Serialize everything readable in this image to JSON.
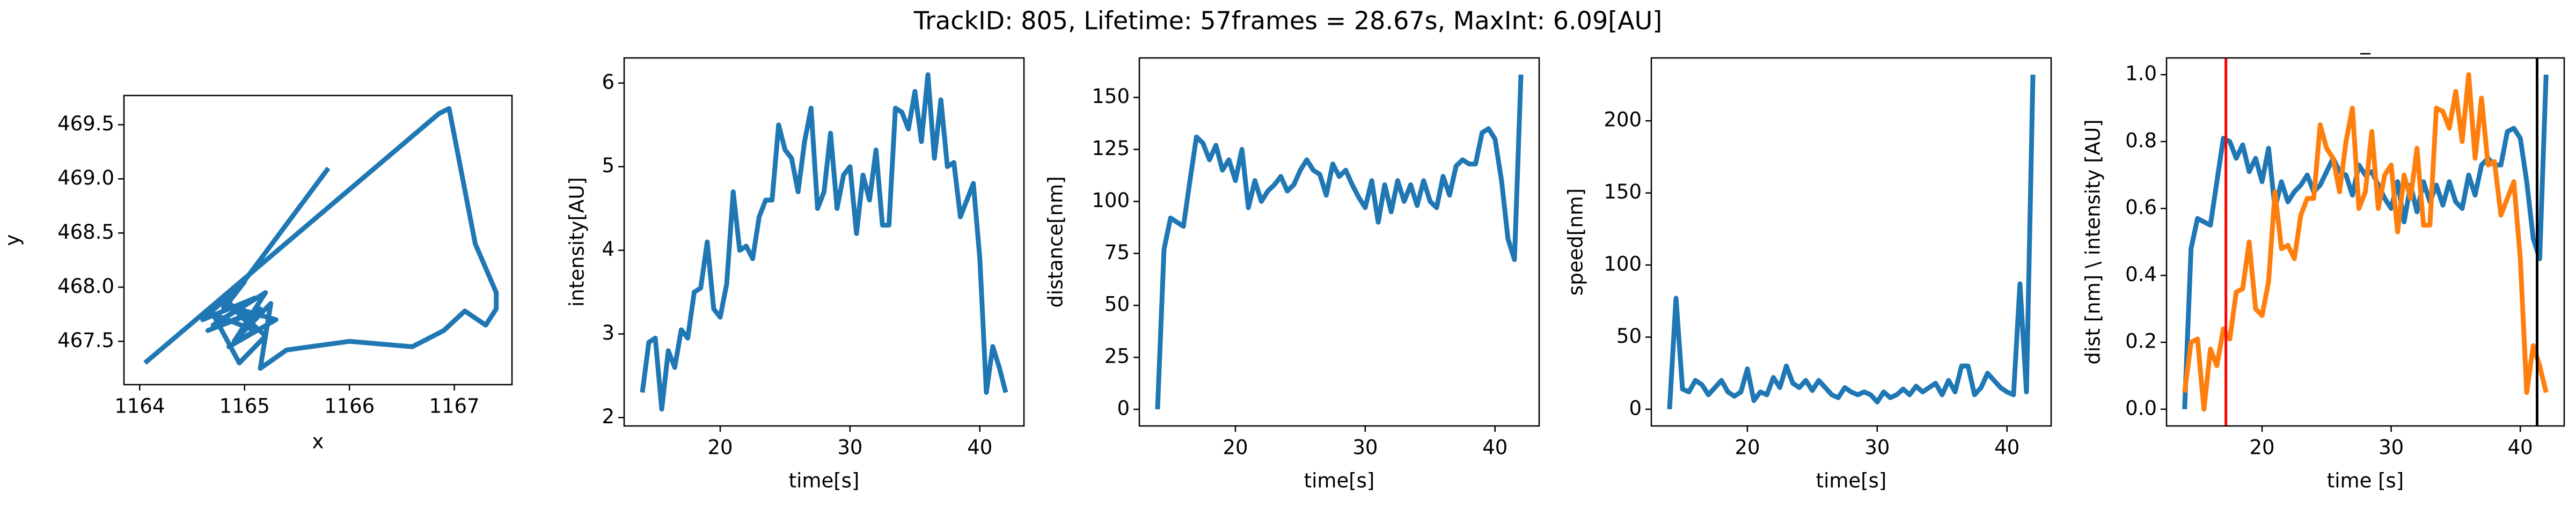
{
  "title": "TrackID: 805, Lifetime: 57frames = 28.67s, MaxInt: 6.09[AU]",
  "chart_data": [
    {
      "type": "line",
      "xlabel": "x",
      "ylabel": "y",
      "x": [
        1165.8,
        1164.8,
        1165.0,
        1164.6,
        1165.1,
        1164.7,
        1165.2,
        1164.9,
        1165.15,
        1164.65,
        1165.05,
        1164.75,
        1165.3,
        1164.85,
        1165.1,
        1164.7,
        1164.95,
        1165.2,
        1164.8,
        1165.05,
        1164.9,
        1165.25,
        1165.15,
        1165.4,
        1166.0,
        1166.6,
        1166.9,
        1167.1,
        1167.3,
        1167.4,
        1167.4,
        1167.2,
        1166.95,
        1166.85,
        1164.05
      ],
      "series": [
        {
          "color": "#1f77b4",
          "values": [
            469.1,
            467.8,
            468.05,
            467.7,
            467.9,
            467.65,
            467.95,
            467.5,
            467.8,
            467.6,
            467.75,
            467.85,
            467.7,
            467.45,
            467.6,
            467.75,
            467.3,
            467.55,
            467.9,
            467.65,
            467.5,
            467.85,
            467.25,
            467.42,
            467.5,
            467.45,
            467.6,
            467.78,
            467.65,
            467.8,
            467.95,
            468.4,
            469.65,
            469.6,
            467.3
          ]
        }
      ],
      "xlim": [
        1163.85,
        1167.55
      ],
      "xticks": [
        1164,
        1165,
        1166,
        1167
      ],
      "ylim": [
        467.1,
        469.77
      ],
      "yticks": [
        467.5,
        {
          "value": 468,
          "label": "468.0"
        },
        468.5,
        {
          "value": 469,
          "label": "469.0"
        },
        469.5
      ]
    },
    {
      "type": "line",
      "xlabel": "time[s]",
      "ylabel": "intensity[AU]",
      "x": [
        14.0,
        14.5,
        15.0,
        15.5,
        16.0,
        16.5,
        17.0,
        17.5,
        18.0,
        18.5,
        19.0,
        19.5,
        20.0,
        20.5,
        21.0,
        21.5,
        22.0,
        22.5,
        23.0,
        23.5,
        24.0,
        24.5,
        25.0,
        25.5,
        26.0,
        26.5,
        27.0,
        27.5,
        28.0,
        28.5,
        29.0,
        29.5,
        30.0,
        30.5,
        31.0,
        31.5,
        32.0,
        32.5,
        33.0,
        33.5,
        34.0,
        34.5,
        35.0,
        35.5,
        36.0,
        36.5,
        37.0,
        37.5,
        38.0,
        38.5,
        39.0,
        39.5,
        40.0,
        40.5,
        41.0,
        41.5,
        42.0
      ],
      "series": [
        {
          "color": "#1f77b4",
          "values": [
            2.3,
            2.9,
            2.95,
            2.1,
            2.8,
            2.6,
            3.05,
            2.95,
            3.5,
            3.55,
            4.1,
            3.3,
            3.2,
            3.6,
            4.7,
            4.0,
            4.05,
            3.9,
            4.4,
            4.6,
            4.6,
            5.5,
            5.2,
            5.1,
            4.7,
            5.3,
            5.7,
            4.5,
            4.7,
            5.4,
            4.5,
            4.9,
            5.0,
            4.2,
            4.9,
            4.6,
            5.2,
            4.3,
            4.3,
            5.7,
            5.65,
            5.45,
            5.9,
            5.3,
            6.1,
            5.1,
            5.8,
            5.0,
            5.05,
            4.4,
            4.6,
            4.8,
            3.9,
            2.3,
            2.85,
            2.6,
            2.3
          ]
        }
      ],
      "xlim": [
        12.6,
        43.4
      ],
      "xticks": [
        20,
        30,
        40
      ],
      "ylim": [
        1.9,
        6.3
      ],
      "yticks": [
        2,
        3,
        4,
        5,
        6
      ]
    },
    {
      "type": "line",
      "xlabel": "time[s]",
      "ylabel": "distance[nm]",
      "x": [
        14.0,
        14.5,
        15.0,
        15.5,
        16.0,
        16.5,
        17.0,
        17.5,
        18.0,
        18.5,
        19.0,
        19.5,
        20.0,
        20.5,
        21.0,
        21.5,
        22.0,
        22.5,
        23.0,
        23.5,
        24.0,
        24.5,
        25.0,
        25.5,
        26.0,
        26.5,
        27.0,
        27.5,
        28.0,
        28.5,
        29.0,
        29.5,
        30.0,
        30.5,
        31.0,
        31.5,
        32.0,
        32.5,
        33.0,
        33.5,
        34.0,
        34.5,
        35.0,
        35.5,
        36.0,
        36.5,
        37.0,
        37.5,
        38.0,
        38.5,
        39.0,
        39.5,
        40.0,
        40.5,
        41.0,
        41.5,
        42.0
      ],
      "series": [
        {
          "color": "#1f77b4",
          "values": [
            0,
            77,
            92,
            90,
            88,
            110,
            131,
            128,
            120,
            127,
            115,
            120,
            110,
            125,
            97,
            110,
            100,
            105,
            108,
            112,
            105,
            108,
            115,
            120,
            115,
            113,
            103,
            118,
            112,
            115,
            108,
            102,
            97,
            110,
            90,
            108,
            95,
            110,
            100,
            108,
            98,
            110,
            100,
            97,
            112,
            103,
            117,
            120,
            118,
            118,
            133,
            135,
            130,
            110,
            82,
            72,
            161
          ]
        }
      ],
      "xlim": [
        12.6,
        43.4
      ],
      "xticks": [
        20,
        30,
        40
      ],
      "ylim": [
        -8,
        169
      ],
      "yticks": [
        0,
        25,
        50,
        75,
        100,
        125,
        150
      ]
    },
    {
      "type": "line",
      "xlabel": "time[s]",
      "ylabel": "speed[nm]",
      "x": [
        14.0,
        14.5,
        15.0,
        15.5,
        16.0,
        16.5,
        17.0,
        17.5,
        18.0,
        18.5,
        19.0,
        19.5,
        20.0,
        20.5,
        21.0,
        21.5,
        22.0,
        22.5,
        23.0,
        23.5,
        24.0,
        24.5,
        25.0,
        25.5,
        26.0,
        26.5,
        27.0,
        27.5,
        28.0,
        28.5,
        29.0,
        29.5,
        30.0,
        30.5,
        31.0,
        31.5,
        32.0,
        32.5,
        33.0,
        33.5,
        34.0,
        34.5,
        35.0,
        35.5,
        36.0,
        36.5,
        37.0,
        37.5,
        38.0,
        38.5,
        39.0,
        39.5,
        40.0,
        40.5,
        41.0,
        41.5,
        42.0
      ],
      "series": [
        {
          "color": "#1f77b4",
          "values": [
            0,
            77,
            14,
            12,
            20,
            17,
            10,
            15,
            20,
            12,
            9,
            12,
            28,
            6,
            12,
            10,
            22,
            15,
            30,
            18,
            15,
            20,
            13,
            20,
            15,
            10,
            8,
            15,
            12,
            10,
            12,
            10,
            5,
            12,
            8,
            10,
            14,
            10,
            16,
            12,
            15,
            18,
            10,
            20,
            12,
            30,
            30,
            10,
            15,
            25,
            20,
            15,
            12,
            10,
            87,
            12,
            232
          ]
        }
      ],
      "xlim": [
        12.6,
        43.4
      ],
      "xticks": [
        20,
        30,
        40
      ],
      "ylim": [
        -11.6,
        243.6
      ],
      "yticks": [
        0,
        50,
        100,
        150,
        200
      ]
    },
    {
      "type": "line",
      "title": "_",
      "xlabel": "time [s]",
      "ylabel": "dist [nm] \\ intensity [AU]",
      "x": [
        14.0,
        14.5,
        15.0,
        15.5,
        16.0,
        16.5,
        17.0,
        17.5,
        18.0,
        18.5,
        19.0,
        19.5,
        20.0,
        20.5,
        21.0,
        21.5,
        22.0,
        22.5,
        23.0,
        23.5,
        24.0,
        24.5,
        25.0,
        25.5,
        26.0,
        26.5,
        27.0,
        27.5,
        28.0,
        28.5,
        29.0,
        29.5,
        30.0,
        30.5,
        31.0,
        31.5,
        32.0,
        32.5,
        33.0,
        33.5,
        34.0,
        34.5,
        35.0,
        35.5,
        36.0,
        36.5,
        37.0,
        37.5,
        38.0,
        38.5,
        39.0,
        39.5,
        40.0,
        40.5,
        41.0,
        41.5,
        42.0
      ],
      "series": [
        {
          "color": "#1f77b4",
          "values": [
            0,
            0.48,
            0.57,
            0.56,
            0.55,
            0.68,
            0.81,
            0.8,
            0.75,
            0.79,
            0.71,
            0.75,
            0.68,
            0.78,
            0.6,
            0.68,
            0.62,
            0.65,
            0.67,
            0.7,
            0.65,
            0.67,
            0.71,
            0.75,
            0.71,
            0.7,
            0.64,
            0.73,
            0.7,
            0.71,
            0.67,
            0.63,
            0.6,
            0.68,
            0.56,
            0.67,
            0.59,
            0.68,
            0.62,
            0.67,
            0.61,
            0.68,
            0.62,
            0.6,
            0.7,
            0.64,
            0.73,
            0.75,
            0.73,
            0.73,
            0.83,
            0.84,
            0.81,
            0.68,
            0.51,
            0.45,
            1.0
          ]
        },
        {
          "color": "#ff7f0e",
          "values": [
            0.05,
            0.2,
            0.21,
            0,
            0.18,
            0.13,
            0.24,
            0.21,
            0.35,
            0.36,
            0.5,
            0.3,
            0.28,
            0.38,
            0.65,
            0.48,
            0.49,
            0.45,
            0.58,
            0.63,
            0.63,
            0.85,
            0.78,
            0.75,
            0.65,
            0.8,
            0.9,
            0.6,
            0.65,
            0.83,
            0.6,
            0.7,
            0.73,
            0.53,
            0.7,
            0.63,
            0.78,
            0.55,
            0.55,
            0.9,
            0.89,
            0.84,
            0.95,
            0.8,
            1.0,
            0.75,
            0.93,
            0.73,
            0.74,
            0.58,
            0.63,
            0.68,
            0.45,
            0.05,
            0.19,
            0.13,
            0.05
          ]
        }
      ],
      "vlines": [
        {
          "x": 17.2,
          "color": "red"
        },
        {
          "x": 41.3,
          "color": "black"
        }
      ],
      "xlim": [
        12.6,
        43.4
      ],
      "xticks": [
        20,
        30,
        40
      ],
      "ylim": [
        -0.05,
        1.05
      ],
      "yticks": [
        {
          "value": 0,
          "label": "0.0"
        },
        0.2,
        0.4,
        0.6,
        0.8,
        {
          "value": 1,
          "label": "1.0"
        }
      ]
    }
  ]
}
